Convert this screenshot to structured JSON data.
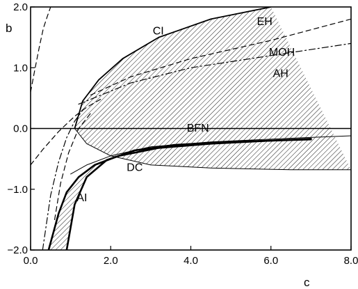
{
  "chart_data": {
    "type": "line",
    "title": "",
    "xlabel": "c",
    "ylabel": "b",
    "xlim": [
      0.0,
      8.0
    ],
    "ylim": [
      -2.0,
      2.0
    ],
    "x_ticks": [
      0.0,
      2.0,
      4.0,
      6.0,
      8.0
    ],
    "y_ticks": [
      -2.0,
      -1.0,
      0.0,
      1.0,
      2.0
    ],
    "x_tick_labels": [
      "0.0",
      "2.0",
      "4.0",
      "6.0",
      "8.0"
    ],
    "y_tick_labels": [
      "−2.0",
      "−1.0",
      "0.0",
      "1.0",
      "2.0"
    ],
    "grid": false,
    "legend": "none",
    "reference_lines": [
      {
        "y": 0.0
      }
    ],
    "series": [
      {
        "name": "CI",
        "style": "solid",
        "x": [
          1.1,
          1.3,
          1.7,
          2.3,
          3.2,
          4.5,
          6.0
        ],
        "y": [
          0.0,
          0.45,
          0.8,
          1.15,
          1.5,
          1.8,
          2.0
        ]
      },
      {
        "name": "EH",
        "style": "dash",
        "x": [
          1.5,
          2.5,
          4.0,
          6.0,
          8.0
        ],
        "y": [
          0.55,
          0.85,
          1.15,
          1.45,
          1.8
        ]
      },
      {
        "name": "MOH",
        "style": "dash-dot",
        "x": [
          1.2,
          2.5,
          4.0,
          6.0,
          8.0
        ],
        "y": [
          0.4,
          0.75,
          1.0,
          1.2,
          1.4
        ]
      },
      {
        "name": "AH",
        "style": "solid-thin",
        "x": [
          1.1,
          1.4,
          2.0,
          3.0,
          4.5,
          6.5,
          8.0
        ],
        "y": [
          0.0,
          -0.25,
          -0.45,
          -0.6,
          -0.65,
          -0.68,
          -0.68
        ]
      },
      {
        "name": "BFN",
        "style": "solid-thick",
        "x": [
          0.45,
          0.7,
          0.9,
          1.2,
          1.6,
          2.2,
          3.2,
          4.5,
          6.0,
          7.0
        ],
        "y": [
          -2.0,
          -1.4,
          -1.05,
          -0.8,
          -0.6,
          -0.45,
          -0.32,
          -0.25,
          -0.2,
          -0.17
        ]
      },
      {
        "name": "DC",
        "style": "solid-thin",
        "x": [
          1.0,
          1.4,
          2.0,
          3.0,
          4.5,
          6.5,
          8.0
        ],
        "y": [
          -0.75,
          -0.6,
          -0.45,
          -0.3,
          -0.22,
          -0.16,
          -0.12
        ]
      },
      {
        "name": "AI",
        "style": "solid-thick",
        "x": [
          0.9,
          1.1,
          1.4,
          1.9,
          2.6,
          3.6,
          5.0,
          7.0
        ],
        "y": [
          -2.0,
          -1.25,
          -0.8,
          -0.52,
          -0.36,
          -0.27,
          -0.22,
          -0.18
        ]
      }
    ],
    "extra_curves": [
      {
        "style": "dash",
        "x": [
          0.0,
          0.1,
          0.22,
          0.32,
          0.42,
          0.5
        ],
        "y": [
          0.6,
          0.95,
          1.35,
          1.65,
          1.85,
          2.0
        ]
      },
      {
        "style": "dash",
        "x": [
          0.0,
          0.3,
          0.7,
          1.1,
          1.4,
          1.8
        ],
        "y": [
          -0.6,
          -0.35,
          -0.05,
          0.2,
          0.35,
          0.5
        ]
      },
      {
        "style": "dash-dot",
        "x": [
          0.3,
          0.5,
          0.7,
          0.9,
          1.1,
          1.3
        ],
        "y": [
          -2.0,
          -1.1,
          -0.55,
          -0.15,
          0.12,
          0.3
        ]
      },
      {
        "style": "dash",
        "x": [
          0.6,
          0.75,
          0.95,
          1.2,
          1.5
        ],
        "y": [
          -1.5,
          -0.9,
          -0.4,
          0.0,
          0.25
        ]
      }
    ],
    "shaded_regions": [
      {
        "between": [
          "CI",
          "AH"
        ],
        "pattern": "hatch"
      },
      {
        "between": [
          "BFN",
          "AI"
        ],
        "pattern": "hatch"
      }
    ],
    "annotations": [
      {
        "text": "CI",
        "x": 3.05,
        "y": 1.55
      },
      {
        "text": "EH",
        "x": 5.65,
        "y": 1.7
      },
      {
        "text": "MOH",
        "x": 5.95,
        "y": 1.2
      },
      {
        "text": "AH",
        "x": 6.05,
        "y": 0.85
      },
      {
        "text": "BFN",
        "x": 3.9,
        "y": -0.05
      },
      {
        "text": "DC",
        "x": 2.4,
        "y": -0.7
      },
      {
        "text": "AI",
        "x": 1.15,
        "y": -1.2
      }
    ]
  }
}
